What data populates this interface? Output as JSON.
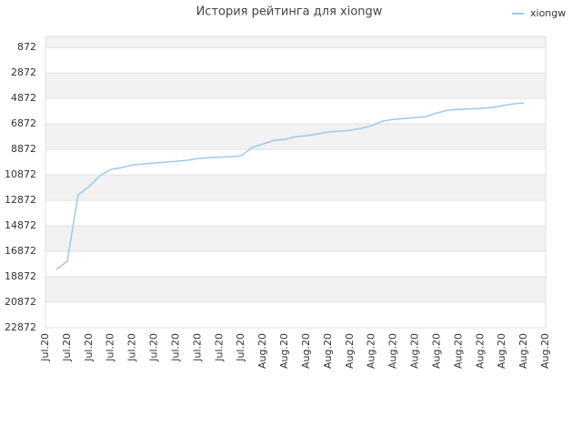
{
  "chart_data": {
    "type": "line",
    "title": "История рейтинга для xiongw",
    "categories": [
      "Jul.20",
      null,
      "Jul.20",
      null,
      "Jul.20",
      null,
      "Jul.20",
      null,
      "Jul.20",
      null,
      "Jul.20",
      null,
      "Jul.20",
      null,
      "Jul.20",
      null,
      "Jul.20",
      null,
      "Jul.20",
      null,
      "Aug.20",
      null,
      "Aug.20",
      null,
      "Aug.20",
      null,
      "Aug.20",
      null,
      "Aug.20",
      null,
      "Aug.20",
      null,
      "Aug.20",
      null,
      "Aug.20",
      null,
      "Aug.20",
      null,
      "Aug.20",
      null,
      "Aug.20",
      null,
      "Aug.20",
      null,
      "Aug.20",
      null,
      "Aug.20"
    ],
    "series": [
      {
        "name": "xiongw",
        "color": "#9cc9ee",
        "values": [
          null,
          18300,
          17660,
          12444,
          11800,
          10943,
          10443,
          10300,
          10086,
          10015,
          9943,
          9872,
          9800,
          9729,
          9586,
          9515,
          9479,
          9443,
          9372,
          8729,
          8443,
          8158,
          8086,
          7872,
          7800,
          7658,
          7515,
          7443,
          7372,
          7229,
          7015,
          6658,
          6515,
          6443,
          6372,
          6300,
          6015,
          5800,
          5729,
          5693,
          5658,
          5586,
          5443,
          5300,
          5229,
          null,
          null
        ]
      }
    ],
    "ylim": [
      22872,
      1
    ],
    "yticks": [
      872,
      2872,
      4872,
      6872,
      8872,
      10872,
      12872,
      14872,
      16872,
      18872,
      20872,
      22872
    ],
    "grid": true,
    "legend": "top-right"
  }
}
